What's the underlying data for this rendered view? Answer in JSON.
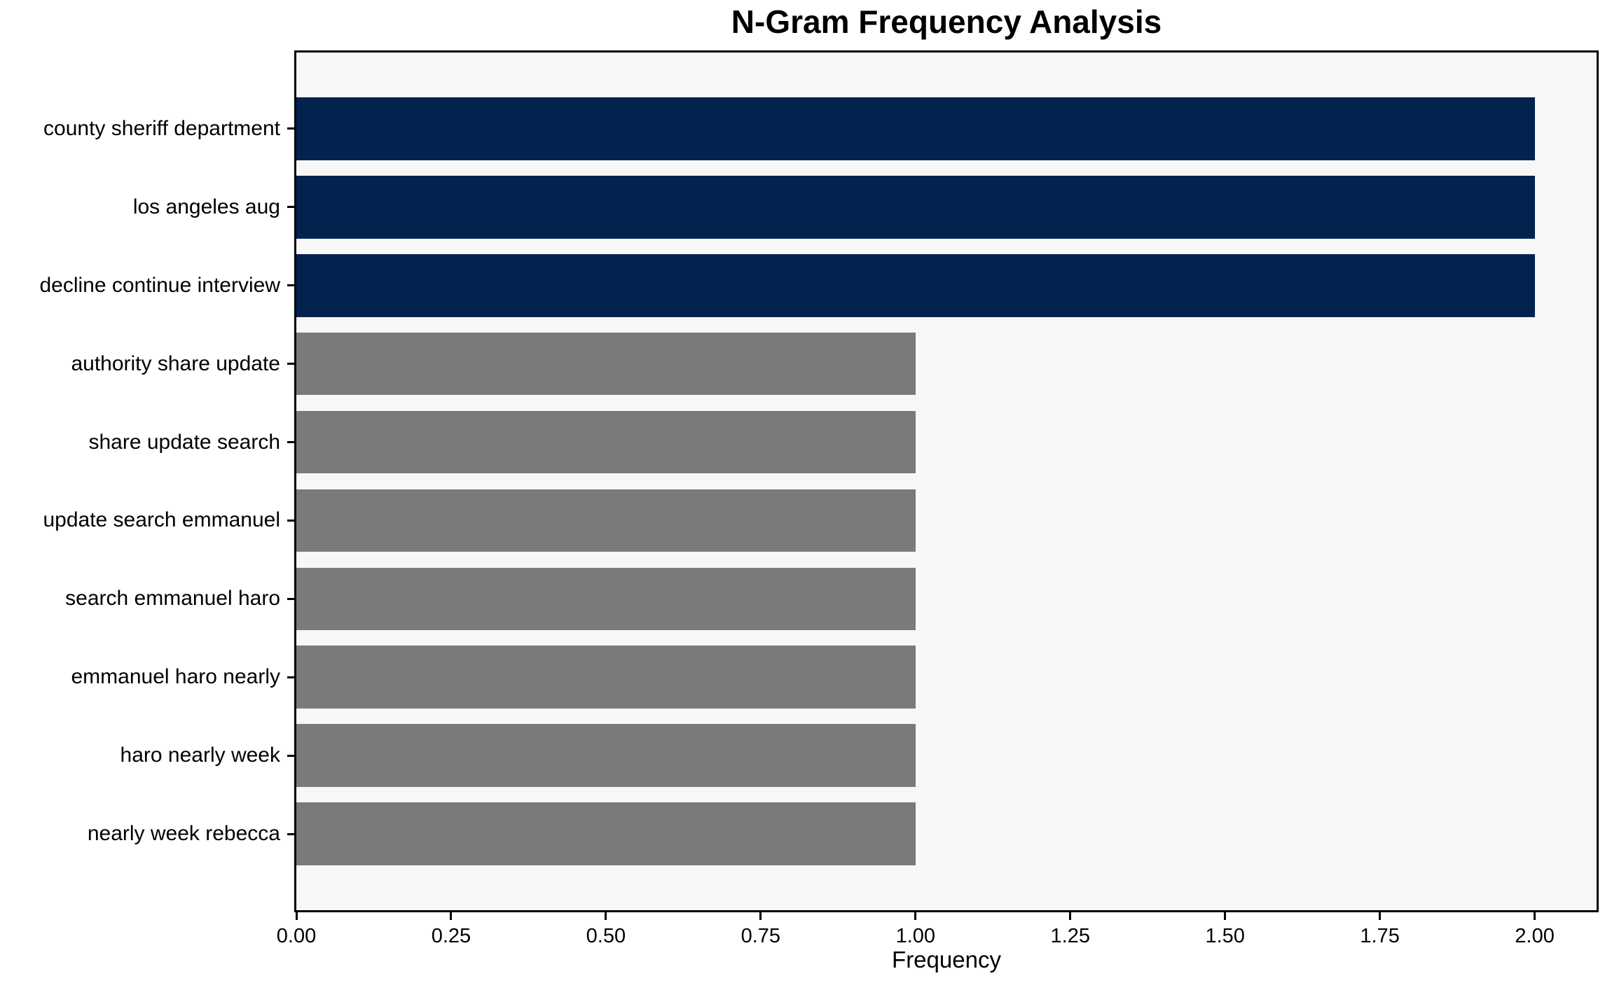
{
  "figure": {
    "background_color": "#ffffff",
    "plot_background_color": "#f7f7f7",
    "spine_color": "#000000"
  },
  "chart_data": {
    "type": "bar",
    "orientation": "horizontal",
    "title": "N-Gram Frequency Analysis",
    "xlabel": "Frequency",
    "ylabel": "",
    "categories": [
      "county sheriff department",
      "los angeles aug",
      "decline continue interview",
      "authority share update",
      "share update search",
      "update search emmanuel",
      "search emmanuel haro",
      "emmanuel haro nearly",
      "haro nearly week",
      "nearly week rebecca"
    ],
    "values": [
      2,
      2,
      2,
      1,
      1,
      1,
      1,
      1,
      1,
      1
    ],
    "bar_colors": [
      "#03234e",
      "#03234e",
      "#03234e",
      "#7a7a78",
      "#7a7a78",
      "#7a7a78",
      "#7a7a78",
      "#7a7a78",
      "#7a7a78",
      "#7a7a78"
    ],
    "colors": {
      "top_frequency_bar": "#03234e",
      "default_bar": "#7a7a78"
    },
    "xlim": [
      0,
      2.1
    ],
    "xticks": [
      "0.00",
      "0.25",
      "0.50",
      "0.75",
      "1.00",
      "1.25",
      "1.50",
      "1.75",
      "2.00"
    ],
    "xtick_values": [
      0,
      0.25,
      0.5,
      0.75,
      1.0,
      1.25,
      1.5,
      1.75,
      2.0
    ],
    "grid": false,
    "legend_position": "none",
    "bar_height_ratio": 0.8
  }
}
